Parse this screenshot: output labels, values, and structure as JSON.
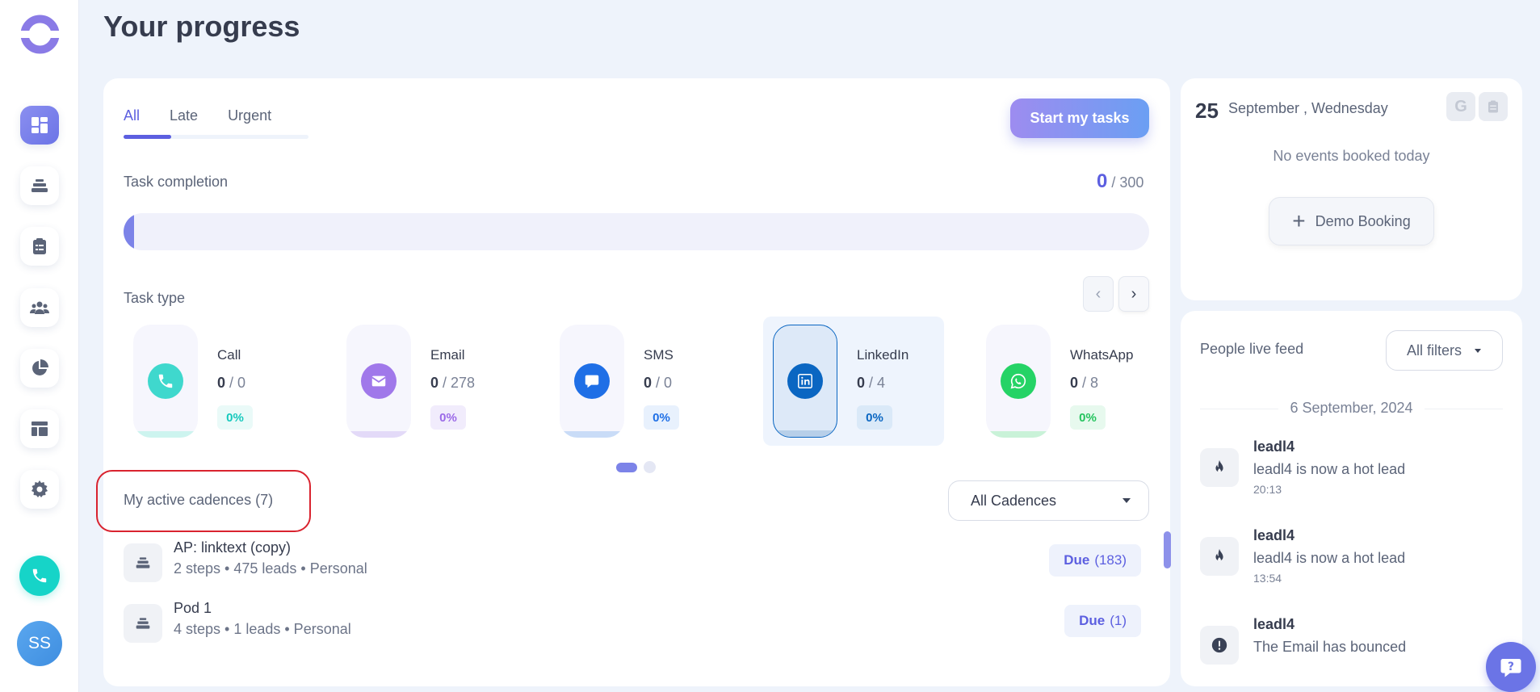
{
  "page": {
    "title": "Your progress"
  },
  "user": {
    "initials": "SS"
  },
  "tabs": [
    {
      "label": "All",
      "active": true
    },
    {
      "label": "Late",
      "active": false
    },
    {
      "label": "Urgent",
      "active": false
    }
  ],
  "actions": {
    "start_tasks": "Start my tasks"
  },
  "completion": {
    "label": "Task completion",
    "done": "0",
    "total": "/ 300",
    "fraction": 0.0
  },
  "task_type": {
    "label": "Task type",
    "cards": [
      {
        "name": "Call",
        "done": "0",
        "total": "/ 0",
        "pct": "0%",
        "color": "#16d4c8"
      },
      {
        "name": "Email",
        "done": "0",
        "total": "/ 278",
        "pct": "0%",
        "color": "#9b6ae8"
      },
      {
        "name": "SMS",
        "done": "0",
        "total": "/ 0",
        "pct": "0%",
        "color": "#1f6fe6"
      },
      {
        "name": "LinkedIn",
        "done": "0",
        "total": "/ 4",
        "pct": "0%",
        "color": "#0a66c2"
      },
      {
        "name": "WhatsApp",
        "done": "0",
        "total": "/ 8",
        "pct": "0%",
        "color": "#25d366"
      }
    ]
  },
  "cadences": {
    "label": "My active cadences (7)",
    "filter": "All Cadences",
    "items": [
      {
        "title": "AP: linktext (copy)",
        "meta": "2 steps • 475 leads • Personal",
        "due_label": "Due",
        "due_count": "(183)"
      },
      {
        "title": "Pod 1",
        "meta": "4 steps • 1 leads • Personal",
        "due_label": "Due",
        "due_count": "(1)"
      }
    ]
  },
  "calendar": {
    "day": "25",
    "date": "September , Wednesday",
    "google_icon_text": "G",
    "no_events": "No events booked today",
    "demo_booking": "Demo Booking"
  },
  "feed": {
    "title": "People live feed",
    "filter": "All filters",
    "date": "6 September, 2024",
    "items": [
      {
        "name": "leadl4",
        "text": "leadl4 is now a hot lead",
        "time": "20:13",
        "icon": "fire-icon"
      },
      {
        "name": "leadl4",
        "text": "leadl4 is now a hot lead",
        "time": "13:54",
        "icon": "fire-icon"
      },
      {
        "name": "leadl4",
        "text": "The Email has bounced",
        "time": "",
        "icon": "alert-icon"
      }
    ]
  },
  "colors": {
    "accent": "#5c5fe0",
    "background": "#eef3fb"
  }
}
